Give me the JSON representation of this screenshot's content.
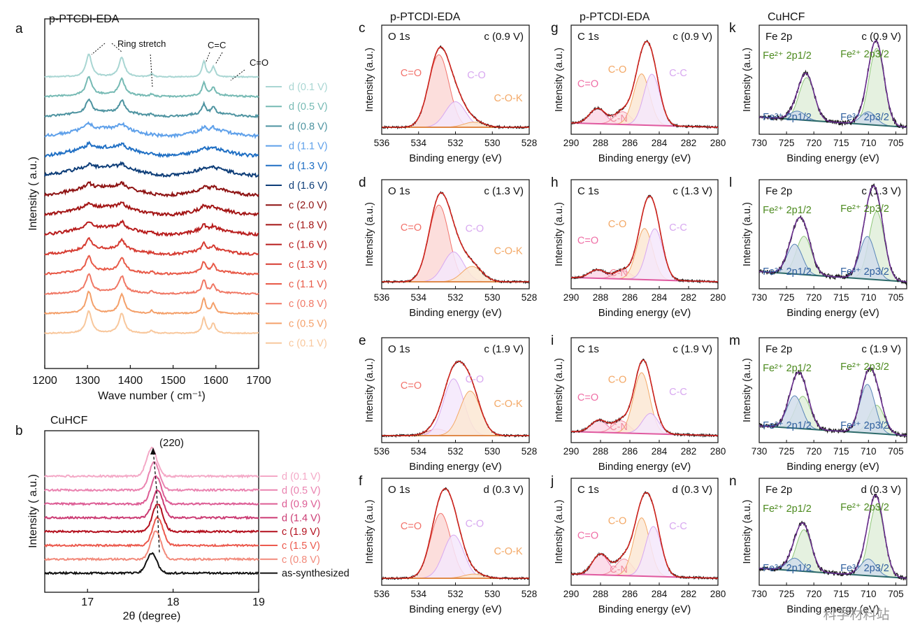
{
  "figure": {
    "watermark": "科学材料站"
  },
  "chart_data": [
    {
      "id": "a",
      "letter": "a",
      "type": "line",
      "title": "p-PTCDI-EDA",
      "xlabel": "Wave number ( cm⁻¹)",
      "ylabel": "Intensity ( a.u.)",
      "xlim": [
        1200,
        1700
      ],
      "xticks": [
        1200,
        1300,
        1400,
        1500,
        1600,
        1700
      ],
      "peaks_cm-1": [
        1303,
        1380,
        1450,
        1572,
        1590,
        1608
      ],
      "annotations": [
        "Ring stretch",
        "C=C",
        "C=O"
      ],
      "series": [
        {
          "name": "d (0.1 V)",
          "color": "#a9d6d3",
          "relative_intensity": 1.0
        },
        {
          "name": "d (0.5 V)",
          "color": "#76bab4",
          "relative_intensity": 0.8
        },
        {
          "name": "d (0.8 V)",
          "color": "#4d93a0",
          "relative_intensity": 0.6
        },
        {
          "name": "d (1.1 V)",
          "color": "#5ea0ea",
          "relative_intensity": 0.25
        },
        {
          "name": "d (1.3 V)",
          "color": "#1f6fc4",
          "relative_intensity": 0.2
        },
        {
          "name": "d (1.6 V)",
          "color": "#0d3d78",
          "relative_intensity": 0.15
        },
        {
          "name": "c (2.0 V)",
          "color": "#8d1111",
          "relative_intensity": 0.2
        },
        {
          "name": "c (1.8 V)",
          "color": "#a31515",
          "relative_intensity": 0.22
        },
        {
          "name": "c (1.6 V)",
          "color": "#b81d1d",
          "relative_intensity": 0.3
        },
        {
          "name": "c (1.3 V)",
          "color": "#d63b31",
          "relative_intensity": 0.45
        },
        {
          "name": "c (1.1 V)",
          "color": "#e85a48",
          "relative_intensity": 0.65
        },
        {
          "name": "c (0.8 V)",
          "color": "#f07865",
          "relative_intensity": 0.8
        },
        {
          "name": "c (0.5 V)",
          "color": "#f4a06a",
          "relative_intensity": 0.95
        },
        {
          "name": "c (0.1 V)",
          "color": "#f8c79c",
          "relative_intensity": 1.0
        }
      ]
    },
    {
      "id": "b",
      "letter": "b",
      "type": "line",
      "title": "CuHCF",
      "xlabel": "2θ (degree)",
      "ylabel": "Intensity ( a.u.)",
      "xlim": [
        16.5,
        19
      ],
      "xticks": [
        17,
        18,
        19
      ],
      "annotation": "(220)",
      "series": [
        {
          "name": "d (0.1 V)",
          "color": "#f4a9c7",
          "peak_2theta": 17.75
        },
        {
          "name": "d (0.5 V)",
          "color": "#ea83b0",
          "peak_2theta": 17.78
        },
        {
          "name": "d (0.9 V)",
          "color": "#dd5d95",
          "peak_2theta": 17.8
        },
        {
          "name": "d (1.4 V)",
          "color": "#cc3c74",
          "peak_2theta": 17.82
        },
        {
          "name": "c (1.9 V)",
          "color": "#b3101e",
          "peak_2theta": 17.82
        },
        {
          "name": "c (1.5 V)",
          "color": "#ec5a4e",
          "peak_2theta": 17.82
        },
        {
          "name": "c (0.8 V)",
          "color": "#f28a7b",
          "peak_2theta": 17.8
        },
        {
          "name": "as-synthesized",
          "color": "#111111",
          "peak_2theta": 17.75
        }
      ]
    },
    {
      "id": "c",
      "letter": "c",
      "type": "area",
      "title": "p-PTCDI-EDA",
      "core": "O 1s",
      "cond": "c (0.9 V)",
      "xlabel": "Binding energy (eV)",
      "ylabel": "Intensity  (a.u.)",
      "xlim": [
        536,
        528
      ],
      "xticks": [
        536,
        534,
        532,
        530,
        528
      ],
      "components": [
        {
          "name": "C=O",
          "center": 532.9,
          "height": 0.85,
          "color": "#f2736c"
        },
        {
          "name": "C-O",
          "center": 532.0,
          "height": 0.3,
          "color": "#d8a8f0"
        },
        {
          "name": "C-O-K",
          "center": 531.0,
          "height": 0.06,
          "color": "#f3a866"
        }
      ]
    },
    {
      "id": "d",
      "letter": "d",
      "type": "area",
      "core": "O 1s",
      "cond": "c (1.3 V)",
      "xlabel": "Binding energy (eV)",
      "ylabel": "Intensity  (a.u.)",
      "xlim": [
        536,
        528
      ],
      "xticks": [
        536,
        534,
        532,
        530,
        528
      ],
      "components": [
        {
          "name": "C=O",
          "center": 532.9,
          "height": 0.9,
          "color": "#f2736c"
        },
        {
          "name": "C-O",
          "center": 532.1,
          "height": 0.35,
          "color": "#d8a8f0"
        },
        {
          "name": "C-O-K",
          "center": 531.1,
          "height": 0.18,
          "color": "#f3a866"
        }
      ]
    },
    {
      "id": "e",
      "letter": "e",
      "type": "area",
      "core": "O 1s",
      "cond": "c (1.9 V)",
      "xlabel": "Binding energy (eV)",
      "ylabel": "Intensity  (a.u.)",
      "xlim": [
        536,
        528
      ],
      "xticks": [
        536,
        534,
        532,
        530,
        528
      ],
      "components": [
        {
          "name": "C=O",
          "center": 533.0,
          "height": 0.08,
          "color": "#f2736c"
        },
        {
          "name": "C-O",
          "center": 532.1,
          "height": 0.7,
          "color": "#d8a8f0"
        },
        {
          "name": "C-O-K",
          "center": 531.2,
          "height": 0.55,
          "color": "#f3a866"
        }
      ]
    },
    {
      "id": "f",
      "letter": "f",
      "type": "area",
      "core": "O 1s",
      "cond": "d (0.3 V)",
      "xlabel": "Binding energy (eV)",
      "ylabel": "Intensity  (a.u.)",
      "xlim": [
        536,
        528
      ],
      "xticks": [
        536,
        534,
        532,
        530,
        528
      ],
      "components": [
        {
          "name": "C=O",
          "center": 532.8,
          "height": 0.78,
          "color": "#f2736c"
        },
        {
          "name": "C-O",
          "center": 532.1,
          "height": 0.52,
          "color": "#d8a8f0"
        },
        {
          "name": "C-O-K",
          "center": 531.0,
          "height": 0.05,
          "color": "#f3a866"
        }
      ]
    },
    {
      "id": "g",
      "letter": "g",
      "type": "area",
      "title": "p-PTCDI-EDA",
      "core": "C 1s",
      "cond": "c (0.9 V)",
      "xlabel": "Binding energy (eV)",
      "ylabel": "Intensity  (a.u.)",
      "xlim": [
        290,
        280
      ],
      "xticks": [
        290,
        288,
        286,
        284,
        282,
        280
      ],
      "components": [
        {
          "name": "C=O",
          "center": 288.2,
          "height": 0.18,
          "color": "#ef6fa6"
        },
        {
          "name": "C-N",
          "center": 286.5,
          "height": 0.15,
          "color": "#f28ca0"
        },
        {
          "name": "C-O",
          "center": 285.2,
          "height": 0.6,
          "color": "#f3a866"
        },
        {
          "name": "C-C",
          "center": 284.5,
          "height": 0.6,
          "color": "#d8a8f0"
        }
      ]
    },
    {
      "id": "h",
      "letter": "h",
      "type": "area",
      "core": "C 1s",
      "cond": "c (1.3 V)",
      "xlabel": "Binding energy (eV)",
      "ylabel": "Intensity  (a.u.)",
      "xlim": [
        290,
        280
      ],
      "xticks": [
        290,
        288,
        286,
        284,
        282,
        280
      ],
      "components": [
        {
          "name": "C=O",
          "center": 288.2,
          "height": 0.1,
          "color": "#ef6fa6"
        },
        {
          "name": "C-N",
          "center": 286.5,
          "height": 0.1,
          "color": "#f28ca0"
        },
        {
          "name": "C-O",
          "center": 285.0,
          "height": 0.6,
          "color": "#f3a866"
        },
        {
          "name": "C-C",
          "center": 284.3,
          "height": 0.6,
          "color": "#d8a8f0"
        }
      ]
    },
    {
      "id": "i",
      "letter": "i",
      "type": "area",
      "core": "C 1s",
      "cond": "c (1.9 V)",
      "xlabel": "Binding energy (eV)",
      "ylabel": "Intensity  (a.u.)",
      "xlim": [
        290,
        280
      ],
      "xticks": [
        290,
        288,
        286,
        284,
        282,
        280
      ],
      "components": [
        {
          "name": "C=O",
          "center": 288.1,
          "height": 0.15,
          "color": "#ef6fa6"
        },
        {
          "name": "C-N",
          "center": 286.6,
          "height": 0.15,
          "color": "#f28ca0"
        },
        {
          "name": "C-O",
          "center": 285.2,
          "height": 0.75,
          "color": "#f3a866"
        },
        {
          "name": "C-C",
          "center": 284.6,
          "height": 0.25,
          "color": "#d8a8f0"
        }
      ]
    },
    {
      "id": "j",
      "letter": "j",
      "type": "area",
      "core": "C 1s",
      "cond": "d (0.3 V)",
      "xlabel": "Binding energy (eV)",
      "ylabel": "Intensity  (a.u.)",
      "xlim": [
        290,
        280
      ],
      "xticks": [
        290,
        288,
        286,
        284,
        282,
        280
      ],
      "components": [
        {
          "name": "C=O",
          "center": 288.0,
          "height": 0.25,
          "color": "#ef6fa6"
        },
        {
          "name": "C-N",
          "center": 286.4,
          "height": 0.2,
          "color": "#f28ca0"
        },
        {
          "name": "C-O",
          "center": 285.2,
          "height": 0.7,
          "color": "#f3a866"
        },
        {
          "name": "C-C",
          "center": 284.4,
          "height": 0.6,
          "color": "#d8a8f0"
        }
      ]
    },
    {
      "id": "k",
      "letter": "k",
      "type": "area",
      "title": "CuHCF",
      "core": "Fe 2p",
      "cond": "c (0.9 V)",
      "xlabel": "Binding energy (eV)",
      "ylabel": "Intensity  (a.u.)",
      "xlim": [
        730,
        703
      ],
      "xticks": [
        730,
        725,
        720,
        715,
        710,
        705
      ],
      "components": [
        {
          "name": "Fe²⁺ 2p1/2",
          "center": 721.3,
          "height": 0.5,
          "color": "#8fc77a"
        },
        {
          "name": "Fe²⁺ 2p3/2",
          "center": 708.5,
          "height": 0.9,
          "color": "#8fc77a"
        },
        {
          "name": "Fe³⁺ 2p1/2",
          "center": 723.0,
          "height": 0.1,
          "color": "#5a86b8"
        },
        {
          "name": "Fe³⁺ 2p3/2",
          "center": 710.0,
          "height": 0.15,
          "color": "#5a86b8"
        }
      ]
    },
    {
      "id": "l",
      "letter": "l",
      "type": "area",
      "core": "Fe 2p",
      "cond": "c (1.3 V)",
      "xlabel": "Binding energy (eV)",
      "ylabel": "Intensity  (a.u.)",
      "xlim": [
        730,
        703
      ],
      "xticks": [
        730,
        725,
        720,
        715,
        710,
        705
      ],
      "components": [
        {
          "name": "Fe²⁺ 2p1/2",
          "center": 721.8,
          "height": 0.45,
          "color": "#8fc77a"
        },
        {
          "name": "Fe²⁺ 2p3/2",
          "center": 708.5,
          "height": 0.8,
          "color": "#8fc77a"
        },
        {
          "name": "Fe³⁺ 2p1/2",
          "center": 723.5,
          "height": 0.35,
          "color": "#5a86b8"
        },
        {
          "name": "Fe³⁺ 2p3/2",
          "center": 710.2,
          "height": 0.5,
          "color": "#5a86b8"
        }
      ]
    },
    {
      "id": "m",
      "letter": "m",
      "type": "area",
      "core": "Fe 2p",
      "cond": "c (1.9 V)",
      "xlabel": "Binding energy (eV)",
      "ylabel": "Intensity  (a.u.)",
      "xlim": [
        730,
        703
      ],
      "xticks": [
        730,
        725,
        720,
        715,
        710,
        705
      ],
      "components": [
        {
          "name": "Fe²⁺ 2p1/2",
          "center": 722.0,
          "height": 0.4,
          "color": "#8fc77a"
        },
        {
          "name": "Fe²⁺ 2p3/2",
          "center": 708.5,
          "height": 0.35,
          "color": "#8fc77a"
        },
        {
          "name": "Fe³⁺ 2p1/2",
          "center": 723.5,
          "height": 0.4,
          "color": "#5a86b8"
        },
        {
          "name": "Fe³⁺ 2p3/2",
          "center": 710.2,
          "height": 0.6,
          "color": "#5a86b8"
        }
      ]
    },
    {
      "id": "n",
      "letter": "n",
      "type": "area",
      "core": "Fe 2p",
      "cond": "d (0.3 V)",
      "xlabel": "Binding energy (eV)",
      "ylabel": "Intensity  (a.u.)",
      "xlim": [
        730,
        703
      ],
      "xticks": [
        730,
        725,
        720,
        715,
        710,
        705
      ],
      "components": [
        {
          "name": "Fe²⁺ 2p1/2",
          "center": 721.8,
          "height": 0.5,
          "color": "#8fc77a"
        },
        {
          "name": "Fe²⁺ 2p3/2",
          "center": 708.5,
          "height": 0.85,
          "color": "#8fc77a"
        },
        {
          "name": "Fe³⁺ 2p1/2",
          "center": 723.5,
          "height": 0.15,
          "color": "#5a86b8"
        },
        {
          "name": "Fe³⁺ 2p3/2",
          "center": 710.0,
          "height": 0.2,
          "color": "#5a86b8"
        }
      ]
    }
  ]
}
